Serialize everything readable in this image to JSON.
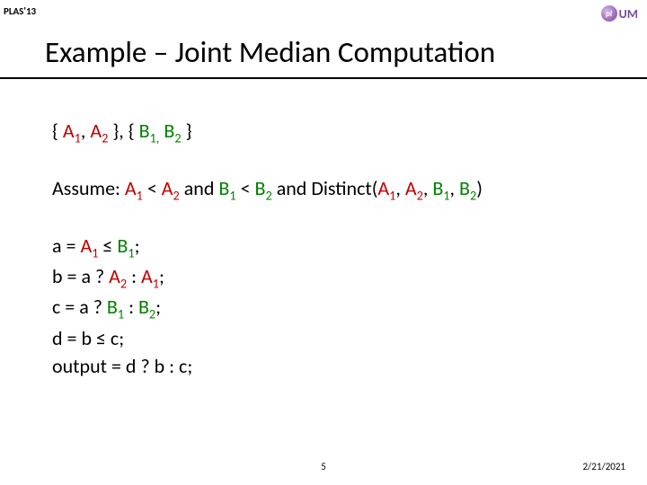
{
  "header_label": "PLAS'13",
  "logo_text": "UM",
  "logo_glyph": "pl",
  "title": "Example – Joint Median Computation",
  "sets": {
    "open1": "{ ",
    "a1": "A",
    "a1_sub": "1",
    "sep1": ", ",
    "a2": "A",
    "a2_sub": "2",
    "mid": " }, { ",
    "b1": "B",
    "b1_sub": "1,",
    "sp": " ",
    "b2": "B",
    "b2_sub": "2",
    "close": " }"
  },
  "assume": {
    "pre": "Assume: ",
    "a1": "A",
    "a1_sub": "1",
    "lt1": " < ",
    "a2": "A",
    "a2_sub": "2",
    "and1": " and ",
    "b1": "B",
    "b1_sub": "1",
    "lt2": " < ",
    "b2": "B",
    "b2_sub": "2",
    "and2": " and Distinct(",
    "da1": "A",
    "da1_sub": "1",
    "c1": ", ",
    "da2": "A",
    "da2_sub": "2",
    "c2": ", ",
    "db1": "B",
    "db1_sub": "1",
    "c3": ", ",
    "db2": "B",
    "db2_sub": "2",
    "close": ")"
  },
  "code": {
    "l1a": "a = ",
    "l1A": "A",
    "l1As": "1",
    "l1b": " ≤ ",
    "l1B": "B",
    "l1Bs": "1",
    "l1c": ";",
    "l2a": "b = a ? ",
    "l2A": "A",
    "l2As": "2",
    "l2b": " : ",
    "l2B": "A",
    "l2Bs": "1",
    "l2c": ";",
    "l3a": "c = a ? ",
    "l3A": "B",
    "l3As": "1",
    "l3b": " : ",
    "l3B": "B",
    "l3Bs": "2",
    "l3c": ";",
    "l4": "d = b ≤ c;",
    "l5": "output = d ? b : c;"
  },
  "slide_num": "5",
  "date": "2/21/2021",
  "colors": {
    "red": "#c00000",
    "green": "#008000",
    "rule": "#000000",
    "logo": "#7a4b98"
  }
}
